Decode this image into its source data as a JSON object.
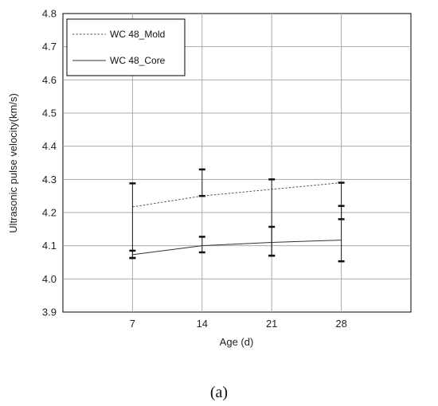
{
  "chart_data": {
    "type": "line",
    "xlabel": "Age (d)",
    "ylabel": "Ultrasonic pulse velocity(km/s)",
    "ylim": [
      3.9,
      4.8
    ],
    "yticks": [
      "3.9",
      "4.0",
      "4.1",
      "4.2",
      "4.3",
      "4.4",
      "4.5",
      "4.6",
      "4.7",
      "4.8"
    ],
    "categories": [
      "7",
      "14",
      "21",
      "28"
    ],
    "grid": true,
    "legend_position": "top-left",
    "series": [
      {
        "name": "WC 48_Mold",
        "style": "dashed",
        "color": "#555555",
        "values": [
          4.217,
          4.25,
          4.27,
          4.29
        ],
        "ranges": [
          [
            4.063,
            4.288
          ],
          [
            4.25,
            4.33
          ],
          [
            4.07,
            4.3
          ],
          [
            4.18,
            4.29
          ]
        ]
      },
      {
        "name": "WC 48_Core",
        "style": "solid",
        "color": "#333333",
        "values": [
          4.073,
          4.1,
          4.11,
          4.117
        ],
        "ranges": [
          [
            4.063,
            4.085
          ],
          [
            4.08,
            4.127
          ],
          [
            4.07,
            4.157
          ],
          [
            4.053,
            4.22
          ]
        ]
      }
    ]
  },
  "caption": "(a)"
}
